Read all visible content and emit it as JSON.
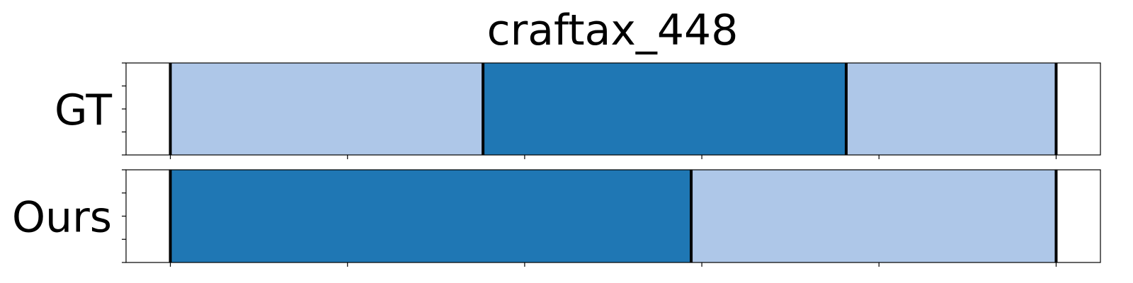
{
  "chart_data": {
    "type": "bar",
    "title": "craftax_448",
    "xlim": [
      0,
      11
    ],
    "rows": [
      {
        "label": "GT",
        "segments": [
          {
            "start": 0.5,
            "end": 4.03,
            "color": "#aec7e8"
          },
          {
            "start": 4.03,
            "end": 8.13,
            "color": "#1f77b4"
          },
          {
            "start": 8.13,
            "end": 10.5,
            "color": "#aec7e8"
          }
        ],
        "boundaries": [
          0.5,
          4.03,
          8.13,
          10.5
        ]
      },
      {
        "label": "Ours",
        "segments": [
          {
            "start": 0.5,
            "end": 6.38,
            "color": "#1f77b4"
          },
          {
            "start": 6.38,
            "end": 10.5,
            "color": "#aec7e8"
          }
        ],
        "boundaries": [
          0.5,
          6.38,
          10.5
        ]
      }
    ],
    "xticks": [
      0.5,
      2.5,
      4.5,
      6.5,
      8.5,
      10.5
    ],
    "yticks_count": 5,
    "grid": false,
    "legend": "none"
  }
}
